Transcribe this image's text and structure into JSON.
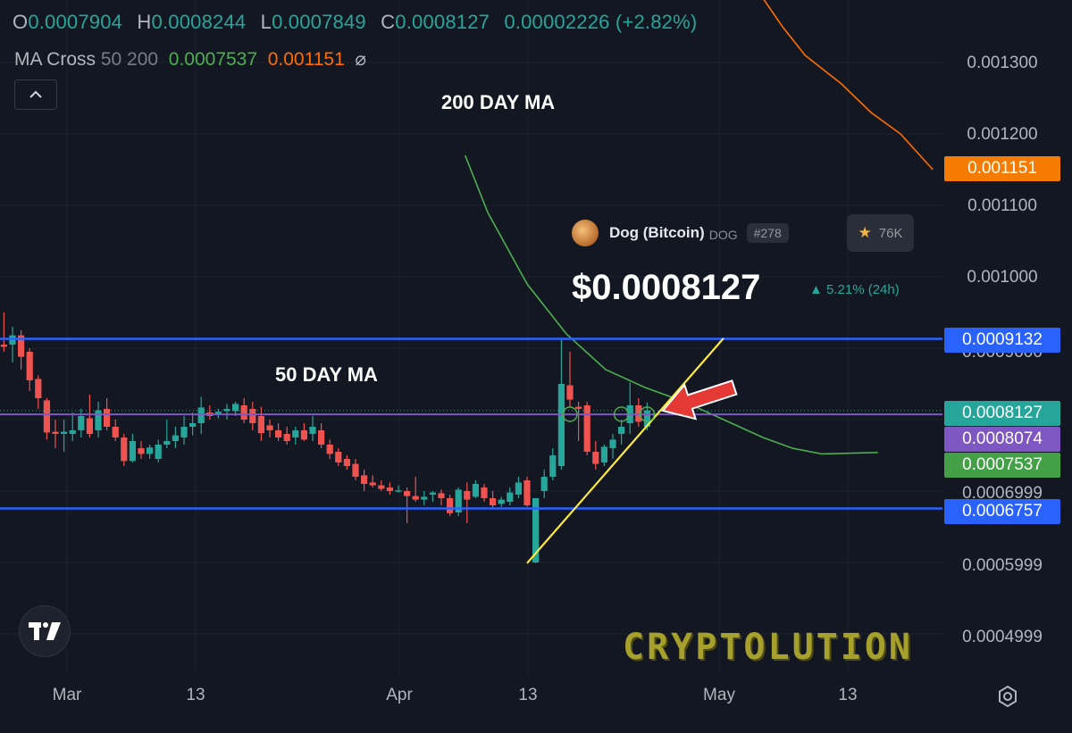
{
  "header": {
    "o_label": "O",
    "o_value": "0.0007904",
    "h_label": "H",
    "h_value": "0.0008244",
    "l_label": "L",
    "l_value": "0.0007849",
    "c_label": "C",
    "c_value": "0.0008127",
    "change": "0.00002226 (+2.82%)"
  },
  "indicator": {
    "name": "MA Cross",
    "params": "50 200",
    "ma50_value": "0.0007537",
    "ma200_value": "0.001151",
    "hide_icon": "eye-off-icon"
  },
  "annotations": {
    "ma200_label": "200 DAY MA",
    "ma50_label": "50 DAY MA"
  },
  "coin": {
    "name": "Dog (Bitcoin)",
    "symbol": "DOG",
    "rank": "#278",
    "watchers": "76K",
    "price": "$0.0008127",
    "change_24h": "▲ 5.21% (24h)"
  },
  "y_axis": {
    "ticks": [
      "0.001300",
      "0.001200",
      "0.001100",
      "0.001000",
      "0.0009000",
      "0.0006999",
      "0.0005999",
      "0.0004999"
    ],
    "badges": [
      {
        "label": "0.001151",
        "color": "#f57c00"
      },
      {
        "label": "0.0009132",
        "color": "#2962ff"
      },
      {
        "label": "0.0008127",
        "color": "#26a69a"
      },
      {
        "label": "0.0008074",
        "color": "#7e57c2"
      },
      {
        "label": "0.0007537",
        "color": "#43a047"
      },
      {
        "label": "0.0006757",
        "color": "#2962ff"
      }
    ]
  },
  "x_axis": {
    "ticks": [
      "Mar",
      "13",
      "Apr",
      "13",
      "May",
      "13"
    ]
  },
  "watermark": "CRYPTOLUTION",
  "colors": {
    "up": "#26a69a",
    "down": "#ef5350",
    "ma50": "#4caf50",
    "ma200": "#ff6d00",
    "level": "#2962ff",
    "current": "#7e57c2",
    "trendline": "#ffeb3b",
    "arrow": "#e53935"
  },
  "chart_data": {
    "type": "candlestick",
    "title": "",
    "xlabel": "",
    "ylabel": "",
    "ylim": [
      0.000465,
      0.00142
    ],
    "x_ticks": [
      "Mar",
      "13",
      "Apr",
      "13",
      "May",
      "13"
    ],
    "levels": [
      0.0009132,
      0.0006757
    ],
    "current_price": 0.0008074,
    "last_close": 0.0008127,
    "trendline": [
      {
        "t": 0,
        "price": 0.000599
      },
      {
        "t": 20,
        "price": 0.000914
      }
    ],
    "series": [
      {
        "name": "MA 50",
        "values": [
          {
            "t": -6.3,
            "price": 0.00117
          },
          {
            "t": -4.0,
            "price": 0.00109
          },
          {
            "t": 0,
            "price": 0.00099
          },
          {
            "t": 4,
            "price": 0.00092
          },
          {
            "t": 8,
            "price": 0.00087
          },
          {
            "t": 12,
            "price": 0.000845
          },
          {
            "t": 16,
            "price": 0.000825
          },
          {
            "t": 20,
            "price": 0.0008
          },
          {
            "t": 24,
            "price": 0.000775
          },
          {
            "t": 27,
            "price": 0.00076
          },
          {
            "t": 30,
            "price": 0.000752
          },
          {
            "t": 33,
            "price": 0.000753
          },
          {
            "t": 35.7,
            "price": 0.000754
          }
        ]
      },
      {
        "name": "MA 200",
        "values": [
          {
            "t": 22,
            "price": 0.00142
          },
          {
            "t": 24,
            "price": 0.00139
          },
          {
            "t": 26,
            "price": 0.00135
          },
          {
            "t": 28.3,
            "price": 0.00131
          },
          {
            "t": 32,
            "price": 0.00127
          },
          {
            "t": 35,
            "price": 0.00123
          },
          {
            "t": 38,
            "price": 0.0012
          },
          {
            "t": 41.3,
            "price": 0.00115
          }
        ]
      }
    ],
    "candles": [
      {
        "o": 0.000918,
        "h": 0.000925,
        "l": 0.000893,
        "c": 0.000898
      },
      {
        "o": 0.0009,
        "h": 0.000918,
        "l": 0.000885,
        "c": 0.00091
      },
      {
        "o": 0.000905,
        "h": 0.00095,
        "l": 0.000895,
        "c": 0.000902
      },
      {
        "o": 0.000905,
        "h": 0.00093,
        "l": 0.00088,
        "c": 0.000918
      },
      {
        "o": 0.000918,
        "h": 0.000925,
        "l": 0.00087,
        "c": 0.000888
      },
      {
        "o": 0.000895,
        "h": 0.0009,
        "l": 0.00084,
        "c": 0.000855
      },
      {
        "o": 0.000857,
        "h": 0.000862,
        "l": 0.000815,
        "c": 0.00083
      },
      {
        "o": 0.000827,
        "h": 0.00083,
        "l": 0.000772,
        "c": 0.000782
      },
      {
        "o": 0.000783,
        "h": 0.0008,
        "l": 0.00076,
        "c": 0.00078
      },
      {
        "o": 0.00078,
        "h": 0.0008,
        "l": 0.000755,
        "c": 0.000783
      },
      {
        "o": 0.00078,
        "h": 0.00081,
        "l": 0.00077,
        "c": 0.000785
      },
      {
        "o": 0.000785,
        "h": 0.000815,
        "l": 0.000775,
        "c": 0.000805
      },
      {
        "o": 0.000802,
        "h": 0.000835,
        "l": 0.000775,
        "c": 0.00078
      },
      {
        "o": 0.000785,
        "h": 0.000825,
        "l": 0.000775,
        "c": 0.000813
      },
      {
        "o": 0.000815,
        "h": 0.00083,
        "l": 0.000785,
        "c": 0.00079
      },
      {
        "o": 0.00079,
        "h": 0.0008,
        "l": 0.00077,
        "c": 0.000775
      },
      {
        "o": 0.000775,
        "h": 0.00078,
        "l": 0.000735,
        "c": 0.000742
      },
      {
        "o": 0.000742,
        "h": 0.00078,
        "l": 0.00074,
        "c": 0.00077
      },
      {
        "o": 0.00076,
        "h": 0.00077,
        "l": 0.000745,
        "c": 0.000752
      },
      {
        "o": 0.000752,
        "h": 0.000765,
        "l": 0.000745,
        "c": 0.000761
      },
      {
        "o": 0.000745,
        "h": 0.000772,
        "l": 0.00074,
        "c": 0.000765
      },
      {
        "o": 0.000765,
        "h": 0.0008,
        "l": 0.00076,
        "c": 0.00077
      },
      {
        "o": 0.00077,
        "h": 0.00079,
        "l": 0.00076,
        "c": 0.000778
      },
      {
        "o": 0.000775,
        "h": 0.000805,
        "l": 0.000765,
        "c": 0.00079
      },
      {
        "o": 0.00079,
        "h": 0.00081,
        "l": 0.000778,
        "c": 0.000795
      },
      {
        "o": 0.000795,
        "h": 0.000832,
        "l": 0.00078,
        "c": 0.000817
      },
      {
        "o": 0.00081,
        "h": 0.00082,
        "l": 0.0008,
        "c": 0.000805
      },
      {
        "o": 0.000808,
        "h": 0.000815,
        "l": 0.000802,
        "c": 0.000811
      },
      {
        "o": 0.000812,
        "h": 0.000822,
        "l": 0.0008,
        "c": 0.000815
      },
      {
        "o": 0.000812,
        "h": 0.000825,
        "l": 0.000805,
        "c": 0.000822
      },
      {
        "o": 0.00082,
        "h": 0.00083,
        "l": 0.000795,
        "c": 0.0008
      },
      {
        "o": 0.000815,
        "h": 0.000825,
        "l": 0.000785,
        "c": 0.000795
      },
      {
        "o": 0.000805,
        "h": 0.000818,
        "l": 0.00077,
        "c": 0.000781
      },
      {
        "o": 0.000792,
        "h": 0.0008,
        "l": 0.000775,
        "c": 0.000785
      },
      {
        "o": 0.000785,
        "h": 0.000795,
        "l": 0.00077,
        "c": 0.000775
      },
      {
        "o": 0.00078,
        "h": 0.00079,
        "l": 0.000765,
        "c": 0.00077
      },
      {
        "o": 0.000775,
        "h": 0.00079,
        "l": 0.000765,
        "c": 0.000785
      },
      {
        "o": 0.000785,
        "h": 0.000795,
        "l": 0.00077,
        "c": 0.000772
      },
      {
        "o": 0.00078,
        "h": 0.000805,
        "l": 0.00077,
        "c": 0.00079
      },
      {
        "o": 0.000785,
        "h": 0.000795,
        "l": 0.00076,
        "c": 0.000765
      },
      {
        "o": 0.000765,
        "h": 0.000772,
        "l": 0.000745,
        "c": 0.000752
      },
      {
        "o": 0.000755,
        "h": 0.00076,
        "l": 0.000735,
        "c": 0.00074
      },
      {
        "o": 0.000745,
        "h": 0.00075,
        "l": 0.00073,
        "c": 0.000735
      },
      {
        "o": 0.000738,
        "h": 0.000745,
        "l": 0.000715,
        "c": 0.00072
      },
      {
        "o": 0.000722,
        "h": 0.00073,
        "l": 0.0007,
        "c": 0.00071
      },
      {
        "o": 0.000712,
        "h": 0.000722,
        "l": 0.000705,
        "c": 0.000708
      },
      {
        "o": 0.000708,
        "h": 0.000715,
        "l": 0.0007,
        "c": 0.000703
      },
      {
        "o": 0.000705,
        "h": 0.000712,
        "l": 0.000695,
        "c": 0.0007
      },
      {
        "o": 0.0007,
        "h": 0.000708,
        "l": 0.000698,
        "c": 0.000701
      },
      {
        "o": 0.0007,
        "h": 0.000705,
        "l": 0.000655,
        "c": 0.000693
      },
      {
        "o": 0.000693,
        "h": 0.00072,
        "l": 0.000685,
        "c": 0.000688
      },
      {
        "o": 0.000688,
        "h": 0.0007,
        "l": 0.00068,
        "c": 0.000692
      },
      {
        "o": 0.000695,
        "h": 0.0007,
        "l": 0.000685,
        "c": 0.000698
      },
      {
        "o": 0.000697,
        "h": 0.000702,
        "l": 0.00068,
        "c": 0.00069
      },
      {
        "o": 0.00069,
        "h": 0.000695,
        "l": 0.000665,
        "c": 0.000669
      },
      {
        "o": 0.00067,
        "h": 0.000705,
        "l": 0.000665,
        "c": 0.000702
      },
      {
        "o": 0.0007,
        "h": 0.000712,
        "l": 0.000655,
        "c": 0.000688
      },
      {
        "o": 0.000692,
        "h": 0.000715,
        "l": 0.00069,
        "c": 0.00071
      },
      {
        "o": 0.000705,
        "h": 0.00071,
        "l": 0.000685,
        "c": 0.00069
      },
      {
        "o": 0.00069,
        "h": 0.0007,
        "l": 0.000675,
        "c": 0.00068
      },
      {
        "o": 0.000682,
        "h": 0.000692,
        "l": 0.000678,
        "c": 0.000688
      },
      {
        "o": 0.000685,
        "h": 0.000705,
        "l": 0.00068,
        "c": 0.000698
      },
      {
        "o": 0.000695,
        "h": 0.00072,
        "l": 0.00069,
        "c": 0.000712
      },
      {
        "o": 0.000715,
        "h": 0.00072,
        "l": 0.000678,
        "c": 0.00068
      },
      {
        "o": 0.0006,
        "h": 0.00069,
        "l": 0.000599,
        "c": 0.00069
      },
      {
        "o": 0.0007,
        "h": 0.00073,
        "l": 0.00069,
        "c": 0.00072
      },
      {
        "o": 0.00072,
        "h": 0.00076,
        "l": 0.000715,
        "c": 0.00075
      },
      {
        "o": 0.000735,
        "h": 0.000913,
        "l": 0.00073,
        "c": 0.00085
      },
      {
        "o": 0.000848,
        "h": 0.000895,
        "l": 0.000818,
        "c": 0.000828
      },
      {
        "o": 0.000818,
        "h": 0.000825,
        "l": 0.00077,
        "c": 0.000815
      },
      {
        "o": 0.00082,
        "h": 0.000825,
        "l": 0.00075,
        "c": 0.000755
      },
      {
        "o": 0.000755,
        "h": 0.00077,
        "l": 0.00073,
        "c": 0.000738
      },
      {
        "o": 0.00074,
        "h": 0.000765,
        "l": 0.000735,
        "c": 0.000762
      },
      {
        "o": 0.00076,
        "h": 0.00078,
        "l": 0.000745,
        "c": 0.000772
      },
      {
        "o": 0.00078,
        "h": 0.0008,
        "l": 0.000765,
        "c": 0.00079
      },
      {
        "o": 0.000795,
        "h": 0.000852,
        "l": 0.00078,
        "c": 0.00082
      },
      {
        "o": 0.00082,
        "h": 0.00083,
        "l": 0.00079,
        "c": 0.000797
      },
      {
        "o": 0.00079,
        "h": 0.000824,
        "l": 0.000785,
        "c": 0.000813
      }
    ]
  }
}
